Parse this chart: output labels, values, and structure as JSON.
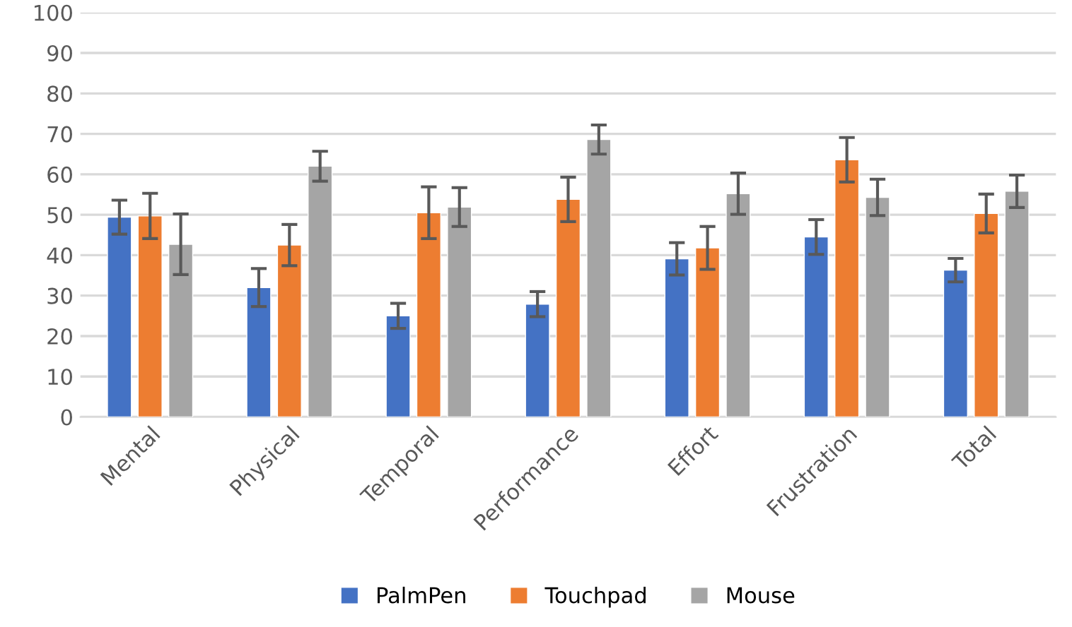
{
  "chart_data": {
    "type": "bar",
    "categories": [
      "Mental",
      "Physical",
      "Temporal",
      "Performance",
      "Effort",
      "Frustration",
      "Total"
    ],
    "series": [
      {
        "name": "PalmPen",
        "color": "#4472c4",
        "values": [
          49.4,
          32.0,
          25.0,
          27.9,
          39.1,
          44.5,
          36.3
        ],
        "errors": [
          4.2,
          4.7,
          3.1,
          3.1,
          4.0,
          4.3,
          2.9
        ]
      },
      {
        "name": "Touchpad",
        "color": "#ed7d31",
        "values": [
          49.7,
          42.5,
          50.5,
          53.8,
          41.8,
          63.6,
          50.3
        ],
        "errors": [
          5.6,
          5.1,
          6.4,
          5.5,
          5.3,
          5.5,
          4.8
        ]
      },
      {
        "name": "Mouse",
        "color": "#a5a5a5",
        "values": [
          42.7,
          62.0,
          51.9,
          68.6,
          55.2,
          54.3,
          55.8
        ],
        "errors": [
          7.5,
          3.7,
          4.8,
          3.6,
          5.1,
          4.5,
          4.0
        ]
      }
    ],
    "ylim": [
      0,
      100
    ],
    "yticks": [
      0,
      10,
      20,
      30,
      40,
      50,
      60,
      70,
      80,
      90,
      100
    ],
    "grid": "y",
    "legend": "bottom"
  }
}
